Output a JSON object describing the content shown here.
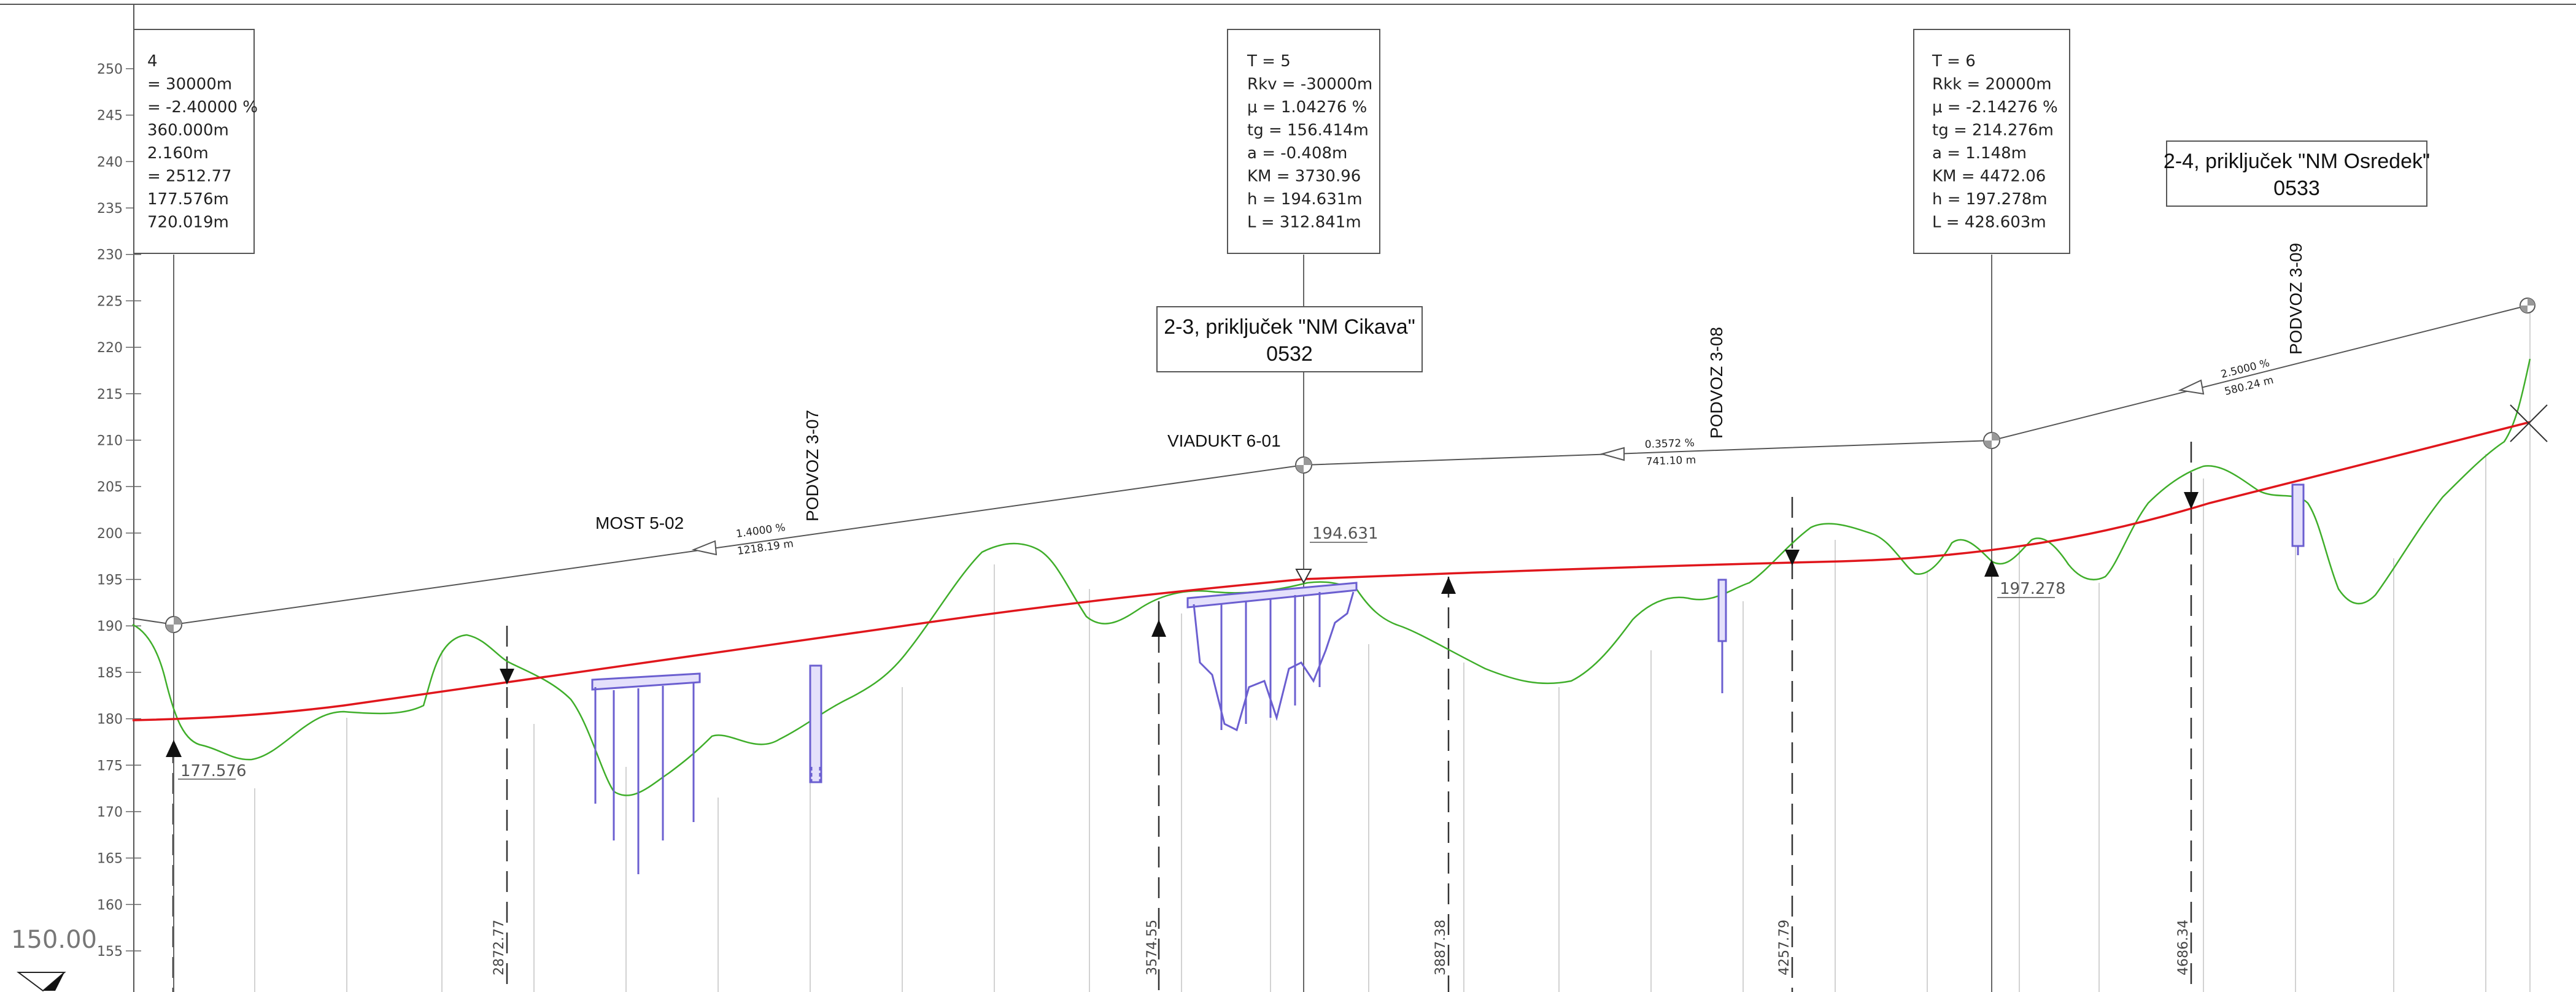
{
  "drawing": {
    "datum_label": "150.00",
    "y_ticks": [
      155,
      160,
      165,
      170,
      175,
      180,
      185,
      190,
      195,
      200,
      205,
      210,
      215,
      220,
      225,
      230,
      235,
      240,
      245,
      250
    ]
  },
  "curve_boxes": [
    {
      "id": "t4",
      "lines": [
        "4",
        "= 30000m",
        "= -2.40000  %",
        "360.000m",
        "2.160m",
        "= 2512.77",
        "177.576m",
        "720.019m"
      ]
    },
    {
      "id": "t5",
      "lines": [
        "T = 5",
        "Rkv = -30000m",
        "μ = 1.04276  %",
        "tg = 156.414m",
        "a = -0.408m",
        "KM = 3730.96",
        "h = 194.631m",
        "L = 312.841m"
      ]
    },
    {
      "id": "t6",
      "lines": [
        "T = 6",
        "Rkk = 20000m",
        "μ = -2.14276  %",
        "tg = 214.276m",
        "a = 1.148m",
        "KM = 4472.06",
        "h = 197.278m",
        "L = 428.603m"
      ]
    }
  ],
  "junctions": [
    {
      "id": "j23",
      "line1": "2-3, priključek \"NM Cikava\"",
      "line2": "0532"
    },
    {
      "id": "j24",
      "line1": "2-4, priključek \"NM Osredek\"",
      "line2": "0533"
    }
  ],
  "structures": [
    {
      "id": "most",
      "label": "MOST 5-02"
    },
    {
      "id": "p307",
      "label": "PODVOZ 3-07"
    },
    {
      "id": "viadukt",
      "label": "VIADUKT 6-01"
    },
    {
      "id": "p308",
      "label": "PODVOZ 3-08"
    },
    {
      "id": "p309",
      "label": "PODVOZ 3-09"
    }
  ],
  "grade_labels": [
    {
      "id": "g1",
      "grade": "1.4000  %",
      "length": "1218.19  m"
    },
    {
      "id": "g2",
      "grade": "0.3572  %",
      "length": "741.10  m"
    },
    {
      "id": "g3",
      "grade": "2.5000  %",
      "length": "580.24  m"
    }
  ],
  "vertex_elevations": [
    {
      "id": "e1",
      "text": "177.576"
    },
    {
      "id": "e2",
      "text": "194.631"
    },
    {
      "id": "e3",
      "text": "197.278"
    }
  ],
  "chainages": [
    "2872.77",
    "3574.55",
    "3887.38",
    "4257.79",
    "4686.34"
  ],
  "colors": {
    "ground": "#3fae2a",
    "design": "#e0161c",
    "tangent": "#555555",
    "structure": "#6b5fd0"
  }
}
